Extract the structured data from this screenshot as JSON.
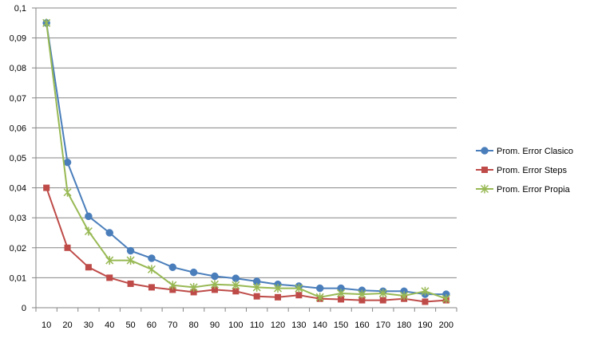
{
  "chart_data": {
    "type": "line",
    "title": "",
    "xlabel": "",
    "ylabel": "",
    "categories": [
      10,
      20,
      30,
      40,
      50,
      60,
      70,
      80,
      90,
      100,
      110,
      120,
      130,
      140,
      150,
      160,
      170,
      180,
      190,
      200
    ],
    "y_ticks": [
      "0",
      "0,01",
      "0,02",
      "0,03",
      "0,04",
      "0,05",
      "0,06",
      "0,07",
      "0,08",
      "0,09",
      "0,1"
    ],
    "ylim": [
      0,
      0.1
    ],
    "grid": "horizontal",
    "legend_position": "right",
    "series": [
      {
        "name": "Prom. Error Clasico",
        "color": "#4a7ebb",
        "marker": "circle",
        "values": [
          0.095,
          0.0485,
          0.0305,
          0.025,
          0.019,
          0.0165,
          0.0135,
          0.0118,
          0.0105,
          0.0098,
          0.0088,
          0.0078,
          0.0072,
          0.0065,
          0.0065,
          0.0058,
          0.0055,
          0.0055,
          0.0045,
          0.0045
        ]
      },
      {
        "name": "Prom. Error Steps",
        "color": "#be4b48",
        "marker": "square",
        "values": [
          0.04,
          0.02,
          0.0135,
          0.01,
          0.008,
          0.0068,
          0.006,
          0.0052,
          0.006,
          0.0055,
          0.0038,
          0.0035,
          0.0042,
          0.003,
          0.0028,
          0.0025,
          0.0025,
          0.003,
          0.002,
          0.0025
        ]
      },
      {
        "name": "Prom. Error Propia",
        "color": "#98b954",
        "marker": "x",
        "values": [
          0.095,
          0.0385,
          0.0255,
          0.0158,
          0.0158,
          0.0128,
          0.0075,
          0.0068,
          0.0078,
          0.0075,
          0.0068,
          0.0065,
          0.0065,
          0.0035,
          0.0048,
          0.0045,
          0.0048,
          0.004,
          0.0055,
          0.003
        ]
      }
    ]
  }
}
